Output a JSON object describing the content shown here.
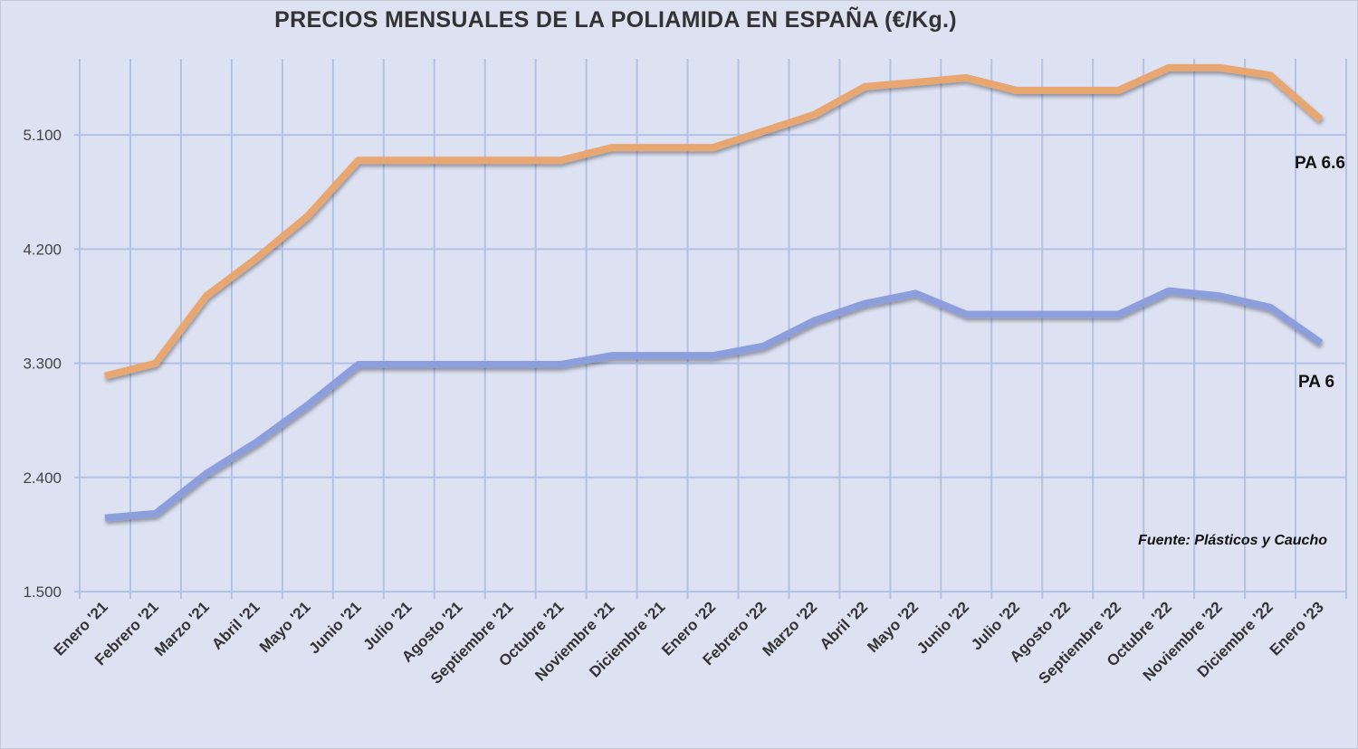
{
  "chart_data": {
    "type": "line",
    "title": "PRECIOS MENSUALES DE LA POLIAMIDA EN ESPAÑA (€/Kg.)",
    "xlabel": "",
    "ylabel": "",
    "ylim": [
      1500,
      5700
    ],
    "yticks": [
      1500,
      2400,
      3300,
      4200,
      5100
    ],
    "ytick_labels": [
      "1.500",
      "2.400",
      "3.300",
      "4.200",
      "5.100"
    ],
    "grid": true,
    "categories": [
      "Enero '21",
      "Febrero '21",
      "Marzo '21",
      "Abril '21",
      "Mayo '21",
      "Junio '21",
      "Julio '21",
      "Agosto '21",
      "Septiembre '21",
      "Octubre '21",
      "Noviembre '21",
      "Diciembre '21",
      "Enero '22",
      "Febrero '22",
      "Marzo '22",
      "Abril '22",
      "Mayo '22",
      "Junio '22",
      "Julio '22",
      "Agosto '22",
      "Septiembre '22",
      "Octubre '22",
      "Noviembre '22",
      "Diciembre '22",
      "Enero '23"
    ],
    "series": [
      {
        "name": "PA 6.6",
        "color": "#e8a670",
        "values": [
          3200,
          3300,
          3830,
          4130,
          4460,
          4900,
          4900,
          4900,
          4900,
          4900,
          5000,
          5000,
          5000,
          5130,
          5260,
          5480,
          5515,
          5550,
          5450,
          5450,
          5450,
          5630,
          5630,
          5570,
          5220
        ]
      },
      {
        "name": "PA 6",
        "color": "#8c9fdc",
        "values": [
          2080,
          2115,
          2430,
          2680,
          2970,
          3290,
          3290,
          3290,
          3290,
          3290,
          3360,
          3360,
          3360,
          3435,
          3635,
          3770,
          3850,
          3685,
          3685,
          3685,
          3685,
          3870,
          3830,
          3740,
          3460
        ]
      }
    ],
    "annotation": "Fuente: Plásticos y Caucho"
  }
}
